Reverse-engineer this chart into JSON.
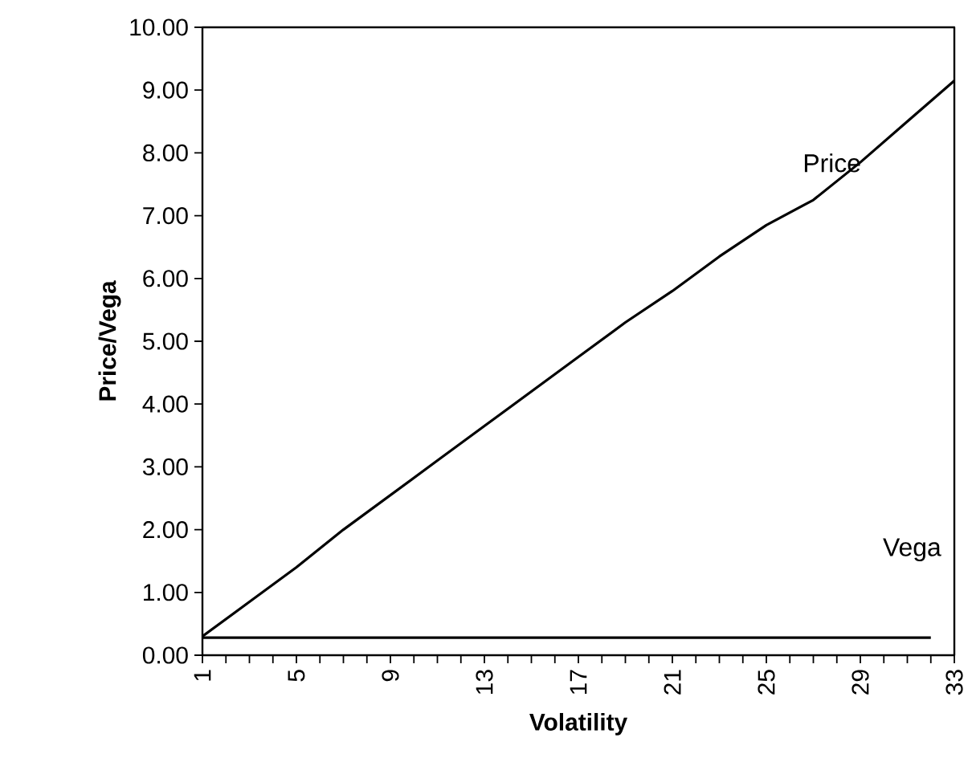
{
  "chart_data": {
    "type": "line",
    "xlabel": "Volatility",
    "ylabel": "Price/Vega",
    "x": [
      1,
      3,
      5,
      7,
      9,
      11,
      13,
      15,
      17,
      19,
      21,
      23,
      25,
      27,
      29,
      31,
      33
    ],
    "series": [
      {
        "name": "Price",
        "color": "#000000",
        "values": [
          0.3,
          0.85,
          1.4,
          2.0,
          2.55,
          3.1,
          3.65,
          4.2,
          4.75,
          5.3,
          5.8,
          6.35,
          6.85,
          7.25,
          7.85,
          8.5,
          9.15
        ]
      },
      {
        "name": "Vega",
        "color": "#000000",
        "x": [
          1,
          32
        ],
        "values": [
          0.28,
          0.28
        ]
      }
    ],
    "xlim": [
      1,
      33
    ],
    "ylim": [
      0,
      10
    ],
    "xticks": [
      1,
      {
        "value": 2,
        "label": null
      },
      {
        "value": 3,
        "label": null
      },
      {
        "value": 4,
        "label": null
      },
      5,
      {
        "value": 6,
        "label": null
      },
      {
        "value": 7,
        "label": null
      },
      {
        "value": 8,
        "label": null
      },
      9,
      {
        "value": 10,
        "label": null
      },
      {
        "value": 11,
        "label": null
      },
      {
        "value": 12,
        "label": null
      },
      13,
      {
        "value": 14,
        "label": null
      },
      {
        "value": 15,
        "label": null
      },
      {
        "value": 16,
        "label": null
      },
      17,
      {
        "value": 18,
        "label": null
      },
      {
        "value": 19,
        "label": null
      },
      {
        "value": 20,
        "label": null
      },
      21,
      {
        "value": 22,
        "label": null
      },
      {
        "value": 23,
        "label": null
      },
      {
        "value": 24,
        "label": null
      },
      25,
      {
        "value": 26,
        "label": null
      },
      {
        "value": 27,
        "label": null
      },
      {
        "value": 28,
        "label": null
      },
      29,
      {
        "value": 30,
        "label": null
      },
      {
        "value": 31,
        "label": null
      },
      {
        "value": 32,
        "label": null
      },
      33
    ],
    "yticks": [
      {
        "value": 0,
        "label": "0.00"
      },
      {
        "value": 1,
        "label": "1.00"
      },
      {
        "value": 2,
        "label": "2.00"
      },
      {
        "value": 3,
        "label": "3.00"
      },
      {
        "value": 4,
        "label": "4.00"
      },
      {
        "value": 5,
        "label": "5.00"
      },
      {
        "value": 6,
        "label": "6.00"
      },
      {
        "value": 7,
        "label": "7.00"
      },
      {
        "value": 8,
        "label": "8.00"
      },
      {
        "value": 9,
        "label": "9.00"
      },
      {
        "value": 10,
        "label": "10.00"
      }
    ],
    "grid": false,
    "legend": false,
    "marker": "none",
    "line_style": "solid"
  }
}
